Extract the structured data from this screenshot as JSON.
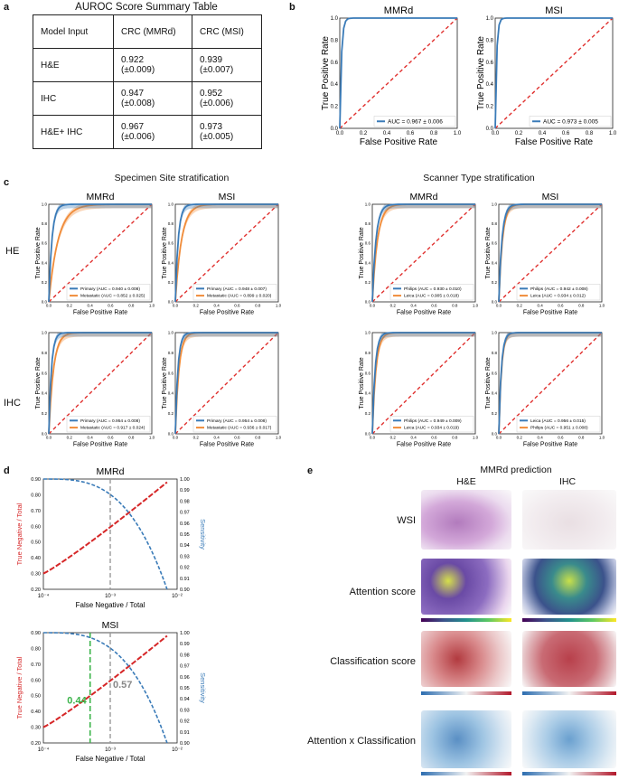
{
  "panel_labels": {
    "a": "a",
    "b": "b",
    "c": "c",
    "d": "d",
    "e": "e"
  },
  "table": {
    "title": "AUROC Score Summary Table",
    "header": [
      "Model Input",
      "CRC (MMRd)",
      "CRC (MSI)"
    ],
    "rows": [
      {
        "input": "H&E",
        "mmrd": "0.922",
        "mmrd_sd": "(±0.009)",
        "msi": "0.939",
        "msi_sd": "(±0.007)"
      },
      {
        "input": "IHC",
        "mmrd": "0.947",
        "mmrd_sd": "(±0.008)",
        "msi": "0.952",
        "msi_sd": "(±0.006)"
      },
      {
        "input": "H&E+ IHC",
        "mmrd": "0.967",
        "mmrd_sd": "(±0.006)",
        "msi": "0.973",
        "msi_sd": "(±0.005)"
      }
    ]
  },
  "c_titles": {
    "specimen": "Specimen Site stratification",
    "scanner": "Scanner Type stratification"
  },
  "c_rowlabels": {
    "he": "HE",
    "ihc": "IHC"
  },
  "e_panel": {
    "title": "MMRd prediction",
    "col_he": "H&E",
    "col_ihc": "IHC",
    "rows": [
      "WSI",
      "Attention score",
      "Classification score",
      "Attention x Classification"
    ]
  },
  "chart_data": [
    {
      "id": "b1",
      "type": "line",
      "title": "MMRd",
      "xlabel": "False Positive Rate",
      "ylabel": "True Positive Rate",
      "xlim": [
        0,
        1
      ],
      "ylim": [
        0,
        1
      ],
      "ticks": [
        "0.0",
        "0.2",
        "0.4",
        "0.6",
        "0.8",
        "1.0"
      ],
      "series": [
        {
          "name": "AUC = 0.967 ± 0.006",
          "k": 0.014,
          "color": "#3a7bb8"
        }
      ],
      "diagonal": true
    },
    {
      "id": "b2",
      "type": "line",
      "title": "MSI",
      "xlabel": "False Positive Rate",
      "ylabel": "True Positive Rate",
      "xlim": [
        0,
        1
      ],
      "ylim": [
        0,
        1
      ],
      "ticks": [
        "0.0",
        "0.2",
        "0.4",
        "0.6",
        "0.8",
        "1.0"
      ],
      "series": [
        {
          "name": "AUC = 0.973 ± 0.005",
          "k": 0.012,
          "color": "#3a7bb8"
        }
      ],
      "diagonal": true
    },
    {
      "id": "c1",
      "type": "line",
      "title": "MMRd",
      "xlabel": "False Positive Rate",
      "ylabel": "True Positive Rate",
      "series": [
        {
          "name": "Primary (AUC = 0.940 ± 0.008)",
          "k": 0.03,
          "color": "#3a7bb8"
        },
        {
          "name": "Metastatic (AUC = 0.852 ± 0.025)",
          "k": 0.09,
          "color": "#f08c3a"
        }
      ],
      "diagonal": true
    },
    {
      "id": "c2",
      "type": "line",
      "title": "MSI",
      "xlabel": "False Positive Rate",
      "ylabel": "True Positive Rate",
      "series": [
        {
          "name": "Primary (AUC = 0.948 ± 0.007)",
          "k": 0.028,
          "color": "#3a7bb8"
        },
        {
          "name": "Metastatic (AUC = 0.899 ± 0.020)",
          "k": 0.06,
          "color": "#f08c3a"
        }
      ],
      "diagonal": true
    },
    {
      "id": "c3",
      "type": "line",
      "title": "MMRd",
      "xlabel": "False Positive Rate",
      "ylabel": "True Positive Rate",
      "series": [
        {
          "name": "Philips (AUC = 0.930 ± 0.010)",
          "k": 0.035,
          "color": "#3a7bb8"
        },
        {
          "name": "Leica (AUC = 0.905 ± 0.018)",
          "k": 0.05,
          "color": "#f08c3a"
        }
      ],
      "diagonal": true
    },
    {
      "id": "c4",
      "type": "line",
      "title": "MSI",
      "xlabel": "False Positive Rate",
      "ylabel": "True Positive Rate",
      "series": [
        {
          "name": "Philips (AUC = 0.942 ± 0.008)",
          "k": 0.03,
          "color": "#3a7bb8"
        },
        {
          "name": "Leica (AUC = 0.934 ± 0.012)",
          "k": 0.035,
          "color": "#f08c3a"
        }
      ],
      "diagonal": true
    },
    {
      "id": "c5",
      "type": "line",
      "title": "",
      "xlabel": "False Positive Rate",
      "ylabel": "True Positive Rate",
      "series": [
        {
          "name": "Primary (AUC = 0.954 ± 0.008)",
          "k": 0.025,
          "color": "#3a7bb8"
        },
        {
          "name": "Metastatic (AUC = 0.917 ± 0.024)",
          "k": 0.045,
          "color": "#f08c3a"
        }
      ],
      "diagonal": true
    },
    {
      "id": "c6",
      "type": "line",
      "title": "",
      "xlabel": "False Positive Rate",
      "ylabel": "True Positive Rate",
      "series": [
        {
          "name": "Primary (AUC = 0.954 ± 0.008)",
          "k": 0.025,
          "color": "#3a7bb8"
        },
        {
          "name": "Metastatic (AUC = 0.936 ± 0.017)",
          "k": 0.035,
          "color": "#f08c3a"
        }
      ],
      "diagonal": true
    },
    {
      "id": "c7",
      "type": "line",
      "title": "",
      "xlabel": "False Positive Rate",
      "ylabel": "True Positive Rate",
      "series": [
        {
          "name": "Philips (AUC = 0.949 ± 0.009)",
          "k": 0.027,
          "color": "#3a7bb8"
        },
        {
          "name": "Leica (AUC = 0.934 ± 0.019)",
          "k": 0.035,
          "color": "#f08c3a"
        }
      ],
      "diagonal": true
    },
    {
      "id": "c8",
      "type": "line",
      "title": "",
      "xlabel": "False Positive Rate",
      "ylabel": "True Positive Rate",
      "series": [
        {
          "name": "Leica (AUC = 0.956 ± 0.015)",
          "k": 0.024,
          "color": "#3a7bb8"
        },
        {
          "name": "Philips (AUC = 0.951 ± 0.008)",
          "k": 0.026,
          "color": "#f08c3a"
        }
      ],
      "diagonal": true
    },
    {
      "id": "d1",
      "type": "line",
      "title": "MMRd",
      "xlabel": "False Negative / Total",
      "ylabel_left": "True Negative / Total",
      "ylabel_right": "Sensitivity",
      "xscale": "log",
      "xlim": [
        0.0001,
        0.01
      ],
      "xticks": [
        "10⁻⁴",
        "10⁻³",
        "10⁻²"
      ],
      "yleft_ticks": [
        "0.20",
        "0.30",
        "0.40",
        "0.50",
        "0.60",
        "0.70",
        "0.80",
        "0.90"
      ],
      "yright_ticks": [
        "0.90",
        "0.91",
        "0.92",
        "0.93",
        "0.94",
        "0.95",
        "0.96",
        "0.97",
        "0.98",
        "0.99",
        "1.00"
      ],
      "vline": 0.001
    },
    {
      "id": "d2",
      "type": "line",
      "title": "MSI",
      "xlabel": "False Negative / Total",
      "ylabel_left": "True Negative / Total",
      "ylabel_right": "Sensitivity",
      "xscale": "log",
      "xlim": [
        0.0001,
        0.01
      ],
      "xticks": [
        "10⁻⁴",
        "10⁻³",
        "10⁻²"
      ],
      "yleft_ticks": [
        "0.20",
        "0.30",
        "0.40",
        "0.50",
        "0.60",
        "0.70",
        "0.80",
        "0.90"
      ],
      "yright_ticks": [
        "0.90",
        "0.91",
        "0.92",
        "0.93",
        "0.94",
        "0.95",
        "0.96",
        "0.97",
        "0.98",
        "0.99",
        "1.00"
      ],
      "vline": 0.001,
      "vline2": 0.0005,
      "annot_green": "0.44",
      "annot_gray": "0.57"
    }
  ]
}
